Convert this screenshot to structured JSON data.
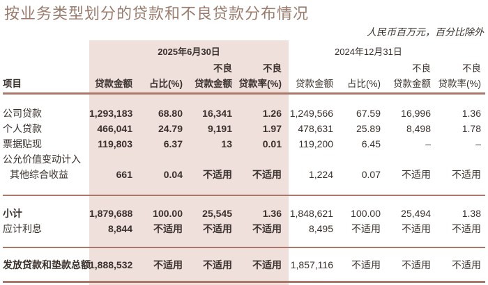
{
  "title": "按业务类型划分的贷款和不良贷款分布情况",
  "unit_note": "人民币百万元，百分比除外",
  "periods": [
    {
      "label": "2025年6月30日"
    },
    {
      "label": "2024年12月31日"
    }
  ],
  "columns": {
    "item": "项目",
    "loan_amount": "贷款金额",
    "share": "占比(%)",
    "npl_amount_top": "不良",
    "npl_amount_bottom": "贷款金额",
    "npl_ratio_top": "不良",
    "npl_ratio_bottom": "贷款率(%)"
  },
  "rows": [
    {
      "label": "公司贷款",
      "p1": [
        "1,293,183",
        "68.80",
        "16,341",
        "1.26"
      ],
      "p2": [
        "1,249,566",
        "67.59",
        "16,996",
        "1.36"
      ]
    },
    {
      "label": "个人贷款",
      "p1": [
        "466,041",
        "24.79",
        "9,191",
        "1.97"
      ],
      "p2": [
        "478,631",
        "25.89",
        "8,498",
        "1.78"
      ]
    },
    {
      "label": "票据贴现",
      "p1": [
        "119,803",
        "6.37",
        "13",
        "0.01"
      ],
      "p2": [
        "119,200",
        "6.45",
        "–",
        "–"
      ]
    },
    {
      "label": "公允价值变动计入",
      "p1": [
        "",
        "",
        "",
        ""
      ],
      "p2": [
        "",
        "",
        "",
        ""
      ]
    },
    {
      "label": "其他综合收益",
      "p1": [
        "661",
        "0.04",
        "不适用",
        "不适用"
      ],
      "p2": [
        "1,224",
        "0.07",
        "不适用",
        "不适用"
      ]
    },
    {
      "label": "小计",
      "p1": [
        "1,879,688",
        "100.00",
        "25,545",
        "1.36"
      ],
      "p2": [
        "1,848,621",
        "100.00",
        "25,494",
        "1.38"
      ]
    },
    {
      "label": "应计利息",
      "p1": [
        "8,844",
        "不适用",
        "不适用",
        "不适用"
      ],
      "p2": [
        "8,495",
        "不适用",
        "不适用",
        "不适用"
      ]
    },
    {
      "label": "发放贷款和垫款总额",
      "p1": [
        "1,888,532",
        "不适用",
        "不适用",
        "不适用"
      ],
      "p2": [
        "1,857,116",
        "不适用",
        "不适用",
        "不适用"
      ]
    }
  ]
}
